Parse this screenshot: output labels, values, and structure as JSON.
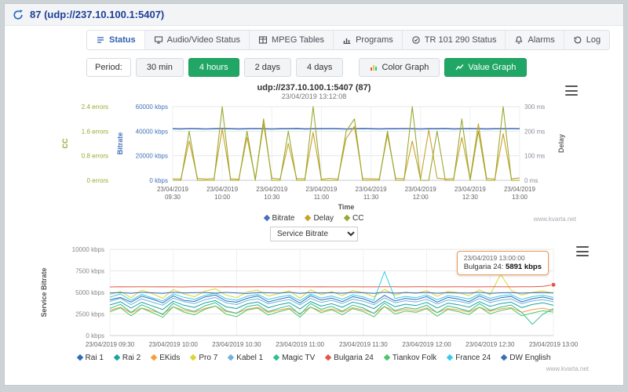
{
  "topbar": {
    "title": "87 (udp://237.10.100.1:5407)"
  },
  "tabs": [
    {
      "label": "Status",
      "active": true
    },
    {
      "label": "Audio/Video Status",
      "active": false
    },
    {
      "label": "MPEG Tables",
      "active": false
    },
    {
      "label": "Programs",
      "active": false
    },
    {
      "label": "TR 101 290 Status",
      "active": false
    },
    {
      "label": "Alarms",
      "active": false
    },
    {
      "label": "Log",
      "active": false
    }
  ],
  "period": {
    "label": "Period:",
    "options": [
      {
        "label": "30 min",
        "active": false
      },
      {
        "label": "4 hours",
        "active": true
      },
      {
        "label": "2 days",
        "active": false
      },
      {
        "label": "4 days",
        "active": false
      }
    ],
    "color_graph": "Color Graph",
    "value_graph": "Value Graph"
  },
  "service_select": {
    "value": "Service Bitrate"
  },
  "watermark": "www.kvarta.net",
  "chart_data": {
    "chart1": {
      "type": "line",
      "title": "udp://237.10.100.1:5407 (87)",
      "subtitle": "23/04/2019 13:12:08",
      "xlabel": "Time",
      "x_date": "23/04/2019",
      "x_times": [
        "09:30",
        "10:00",
        "10:30",
        "11:00",
        "11:30",
        "12:00",
        "12:30",
        "13:00"
      ],
      "axes": {
        "cc": {
          "title": "CC",
          "color": "#9aa82f",
          "max": 2.4,
          "labels": [
            "0 errors",
            "0.8 errors",
            "1.6 errors",
            "2.4 errors"
          ]
        },
        "bitrate": {
          "title": "Bitrate",
          "color": "#4472b8",
          "max": 60000,
          "labels": [
            "0 kbps",
            "20000 kbps",
            "40000 kbps",
            "60000 kbps"
          ]
        },
        "delay": {
          "title": "Delay",
          "color": "#8a8f98",
          "max": 300,
          "labels": [
            "0 ms",
            "100 ms",
            "200 ms",
            "300 ms"
          ]
        }
      },
      "series": [
        {
          "name": "Bitrate",
          "axis": "bitrate",
          "color": "#4472b8",
          "values": [
            42000,
            41900,
            42100,
            42000,
            41800,
            42000,
            42200,
            42000,
            41900,
            42000,
            42100,
            42000,
            41800,
            42000,
            42000,
            42200,
            41900,
            42000,
            42000,
            42100,
            42000,
            41800,
            42000,
            42200,
            42000,
            41900,
            42000,
            42000,
            42100,
            42000,
            41800,
            42000,
            42000,
            42200,
            41900,
            42000,
            42100,
            42000,
            41900,
            42000,
            42000,
            42100,
            42000
          ]
        },
        {
          "name": "Delay",
          "axis": "delay",
          "color": "#c9a227",
          "values": [
            6,
            5,
            160,
            8,
            5,
            7,
            210,
            6,
            4,
            175,
            6,
            230,
            9,
            5,
            150,
            7,
            6,
            195,
            4,
            8,
            5,
            170,
            220,
            7,
            6,
            5,
            185,
            8,
            6,
            160,
            4,
            205,
            9,
            5,
            7,
            175,
            6,
            230,
            8,
            5,
            190,
            6,
            10
          ]
        },
        {
          "name": "CC",
          "axis": "cc",
          "color": "#9aa82f",
          "values": [
            0,
            0,
            1.6,
            0,
            0,
            0,
            2.4,
            0,
            0,
            1.6,
            0,
            2,
            0,
            0,
            1.6,
            0,
            0,
            2.4,
            0,
            0,
            0,
            1.6,
            2,
            0,
            0,
            0,
            1.6,
            0,
            0,
            2.4,
            0,
            0,
            1.6,
            0,
            0,
            2,
            0,
            1.6,
            0,
            0,
            2.4,
            0,
            0
          ]
        }
      ]
    },
    "chart2": {
      "type": "line",
      "ylabel": "Service Bitrate",
      "ymax": 10000,
      "ytick_labels": [
        "0 kbps",
        "2500 kbps",
        "5000 kbps",
        "7500 kbps",
        "10000 kbps"
      ],
      "x_labels": [
        "23/04/2019 09:30",
        "23/04/2019 10:00",
        "23/04/2019 10:30",
        "23/04/2019 11:00",
        "23/04/2019 11:30",
        "23/04/2019 12:00",
        "23/04/2019 12:30",
        "23/04/2019 13:00"
      ],
      "tooltip": {
        "time": "23/04/2019 13:00:00",
        "series": "Bulgaria 24",
        "value": "5891 kbps"
      },
      "series": [
        {
          "name": "Rai 1",
          "color": "#2f6db5",
          "values": [
            4150,
            4420,
            3880,
            4560,
            4230,
            3790,
            4610,
            4080,
            3950,
            4480,
            4700,
            4010,
            3860,
            4320,
            4590,
            3900,
            4210,
            4470,
            3760,
            4620,
            4120,
            4350,
            3940,
            4510,
            4260,
            3810,
            4660,
            4020,
            4310,
            4160,
            4520,
            3870,
            4430,
            4240,
            3930,
            4600,
            4060,
            4380,
            4540,
            3910,
            4270,
            4460,
            4180
          ]
        },
        {
          "name": "Rai 2",
          "color": "#18a5a0",
          "values": [
            3550,
            3920,
            3180,
            3860,
            3440,
            3010,
            3980,
            3520,
            3260,
            3790,
            4050,
            3330,
            3140,
            3680,
            3900,
            3230,
            3560,
            3820,
            3070,
            3950,
            3410,
            3700,
            3280,
            3880,
            3590,
            3120,
            3990,
            3350,
            3640,
            3480,
            3850,
            3190,
            3760,
            3570,
            3290,
            3940,
            3380,
            3710,
            3870,
            3240,
            3600,
            3800,
            3510
          ]
        },
        {
          "name": "EKids",
          "color": "#f0a13c",
          "values": [
            2950,
            3280,
            2640,
            3190,
            2870,
            2520,
            3340,
            2930,
            2700,
            3150,
            3420,
            2780,
            2590,
            3060,
            3270,
            2680,
            2960,
            3180,
            2540,
            3310,
            2850,
            3090,
            2720,
            3230,
            2980,
            2570,
            3360,
            2800,
            3040,
            2890,
            3210,
            2650,
            3130,
            2970,
            2730,
            3300,
            2820,
            3100,
            3240,
            2690,
            3010,
            3170,
            2920
          ]
        },
        {
          "name": "Pro 7",
          "color": "#ddd531",
          "values": [
            4750,
            5120,
            4380,
            5260,
            4870,
            4320,
            5340,
            4830,
            4500,
            5150,
            5420,
            4680,
            4390,
            5060,
            5270,
            4580,
            4860,
            5180,
            4340,
            5310,
            4750,
            5090,
            4620,
            5230,
            4980,
            4470,
            5360,
            4700,
            5040,
            4890,
            5210,
            4550,
            5130,
            4970,
            4630,
            5300,
            4720,
            7100,
            5240,
            4690,
            5010,
            5170,
            4920
          ]
        },
        {
          "name": "Kabel 1",
          "color": "#6fb3dc",
          "values": [
            3950,
            4320,
            3580,
            4260,
            3870,
            3520,
            4340,
            3930,
            3700,
            4150,
            4420,
            3780,
            3590,
            4060,
            4270,
            3680,
            3960,
            4180,
            3540,
            4310,
            3850,
            4090,
            3720,
            4230,
            3980,
            3570,
            4360,
            3800,
            4040,
            3890,
            4210,
            3650,
            4130,
            3970,
            3730,
            4300,
            3820,
            4100,
            4240,
            3690,
            4010,
            4170,
            3920
          ]
        },
        {
          "name": "Magic TV",
          "color": "#2fbf8f",
          "values": [
            3150,
            3620,
            2680,
            3560,
            3070,
            2420,
            3740,
            3130,
            2800,
            3450,
            3820,
            2880,
            2590,
            3360,
            3570,
            2780,
            3160,
            3480,
            2440,
            3710,
            3050,
            3390,
            2820,
            3530,
            3180,
            2570,
            3760,
            2900,
            3240,
            3090,
            3510,
            2650,
            3430,
            3170,
            2830,
            3700,
            2920,
            3300,
            3540,
            2690,
            1300,
            2470,
            3120
          ]
        },
        {
          "name": "Bulgaria 24",
          "color": "#e2574c",
          "values": [
            5640,
            5660,
            5650,
            5655,
            5645,
            5660,
            5650,
            5640,
            5658,
            5652,
            5646,
            5661,
            5649,
            5643,
            5657,
            5651,
            5645,
            5659,
            5653,
            5647,
            5662,
            5648,
            5642,
            5656,
            5650,
            5644,
            5658,
            5652,
            5646,
            5660,
            5654,
            5648,
            5641,
            5655,
            5649,
            5643,
            5657,
            5651,
            5645,
            5659,
            5653,
            5700,
            5891
          ]
        },
        {
          "name": "Tiankov Folk",
          "color": "#4fc46a",
          "values": [
            2750,
            3220,
            2280,
            3160,
            2670,
            2120,
            3340,
            2730,
            2400,
            3050,
            3420,
            2480,
            2190,
            2960,
            3170,
            2380,
            2760,
            3080,
            2140,
            3310,
            2650,
            2990,
            2420,
            3130,
            2780,
            2170,
            3360,
            2500,
            2840,
            2690,
            3110,
            2250,
            3030,
            2770,
            2430,
            3300,
            2520,
            2900,
            3140,
            2290,
            2610,
            2870,
            2720
          ]
        },
        {
          "name": "France 24",
          "color": "#38cbe8",
          "values": [
            4450,
            4820,
            4080,
            4760,
            4370,
            4020,
            4840,
            4430,
            4200,
            4650,
            4920,
            4280,
            4090,
            4560,
            4770,
            4180,
            4460,
            4680,
            4040,
            4810,
            4350,
            4590,
            4220,
            4730,
            4480,
            4070,
            7420,
            4300,
            4540,
            4390,
            4710,
            4150,
            4630,
            4470,
            4230,
            4800,
            4320,
            4600,
            4740,
            4190,
            4510,
            4670,
            4420
          ]
        },
        {
          "name": "DW English",
          "color": "#3b6fb0",
          "values": [
            4940,
            4980,
            4900,
            5010,
            4950,
            4880,
            5020,
            4930,
            4960,
            4990,
            4910,
            5000,
            4940,
            4870,
            4970,
            4950,
            4920,
            5010,
            4890,
            4980,
            4940,
            4960,
            4900,
            5000,
            4950,
            4880,
            5020,
            4910,
            4970,
            4930,
            4990,
            4900,
            4960,
            4940,
            4920,
            5010,
            4890,
            4950,
            4980,
            4910,
            4960,
            4970,
            4930
          ]
        }
      ]
    }
  }
}
